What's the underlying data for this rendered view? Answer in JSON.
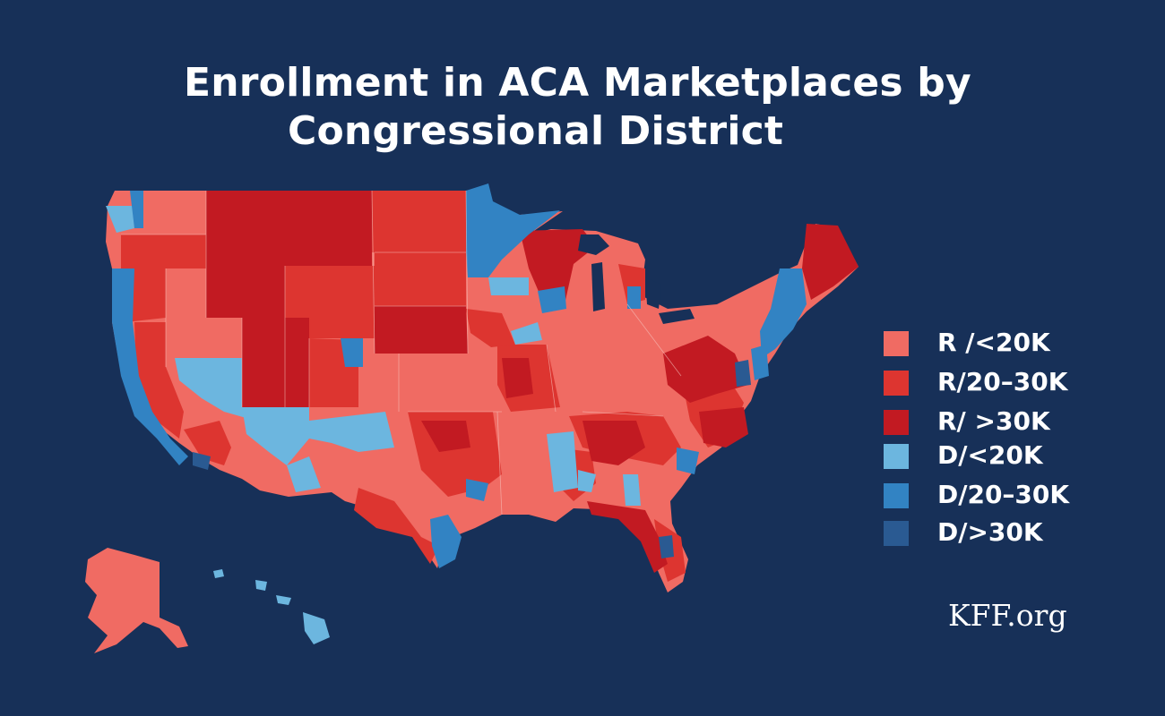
{
  "title": {
    "line1": "Enrollment in ACA Marketplaces by",
    "line2": "Congressional District"
  },
  "legend": [
    {
      "label": "R /<20K",
      "color": "#f06b63"
    },
    {
      "label": "R/20–30K",
      "color": "#dd3530"
    },
    {
      "label": "R/ >30K",
      "color": "#c21a22"
    },
    {
      "label": "D/<20K",
      "color": "#6cb6df"
    },
    {
      "label": "D/20–30K",
      "color": "#3283c3"
    },
    {
      "label": "D/>30K",
      "color": "#2a5a92"
    }
  ],
  "credit": "KFF.org",
  "map_colors": {
    "background": "#173058",
    "border": "#f7c9c4"
  }
}
